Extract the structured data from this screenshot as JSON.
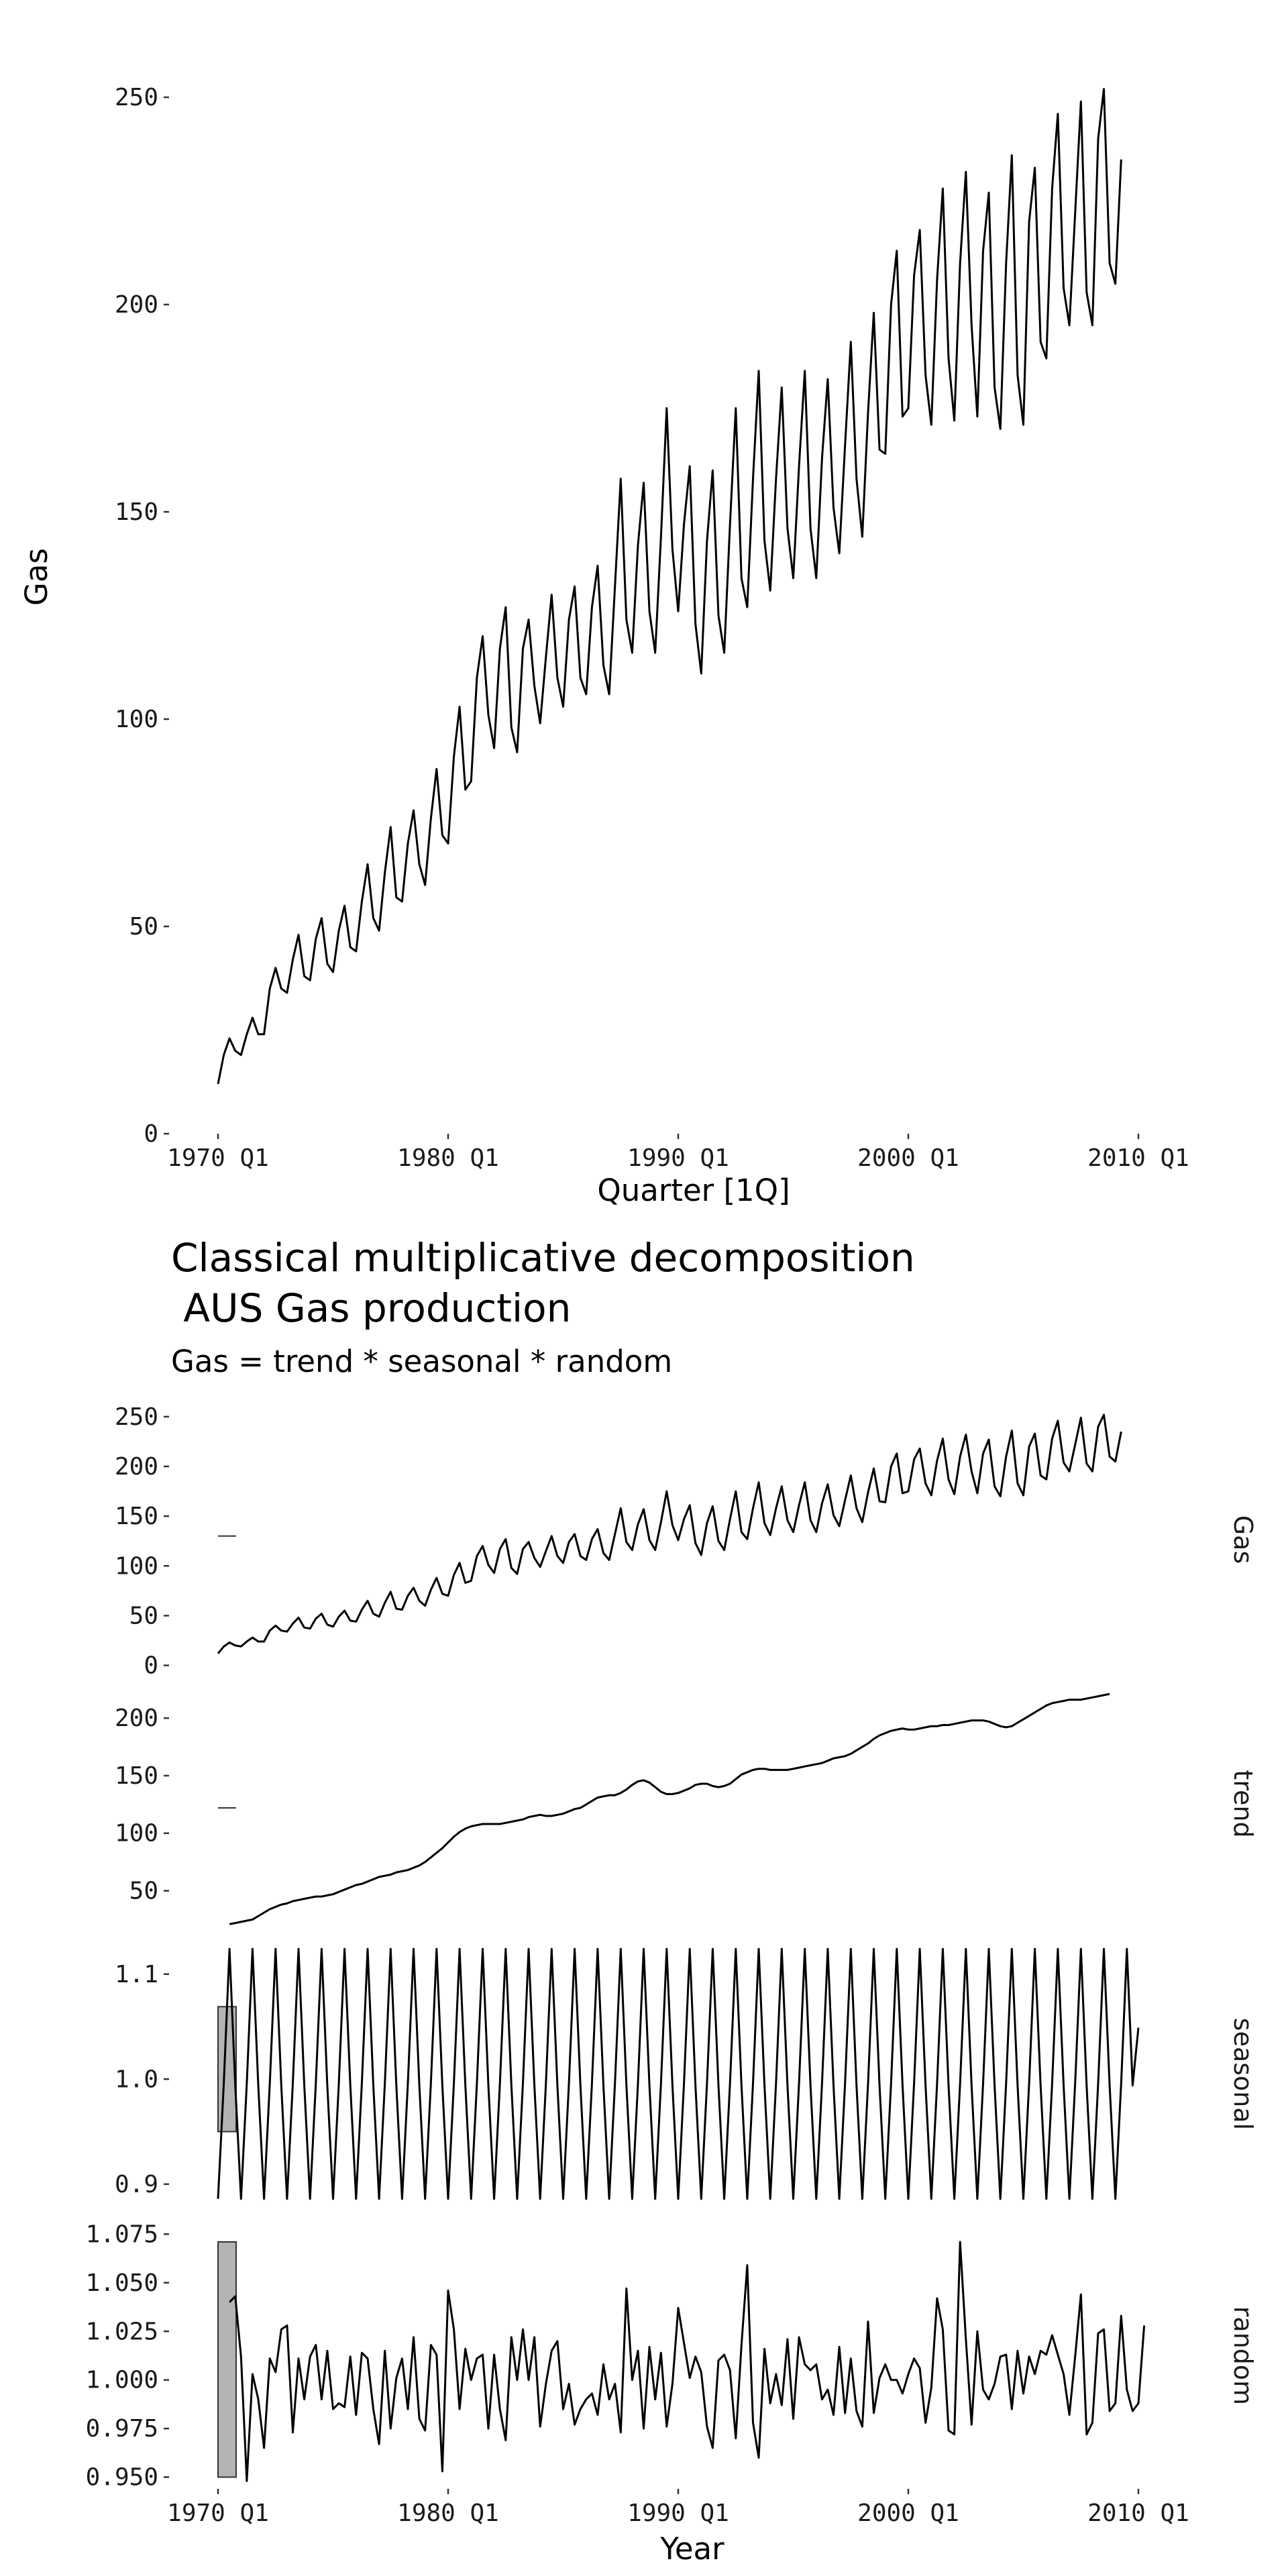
{
  "chart_data": [
    {
      "type": "line",
      "title": "",
      "xlabel": "Quarter [1Q]",
      "ylabel": "Gas",
      "ylim": [
        0,
        260
      ],
      "y_ticks": [
        0,
        50,
        100,
        150,
        200,
        250
      ],
      "x_ticks": [
        "1970 Q1",
        "1980 Q1",
        "1990 Q1",
        "2000 Q1",
        "2010 Q1"
      ],
      "x_tick_years": [
        1970,
        1980,
        1990,
        2000,
        2010
      ],
      "x_start": 1970.0,
      "x_step": 0.25,
      "grid": false,
      "series": [
        {
          "values": [
            12,
            19,
            23,
            20,
            19,
            24,
            28,
            24,
            24,
            35,
            40,
            35,
            34,
            42,
            48,
            38,
            37,
            47,
            52,
            41,
            39,
            49,
            55,
            45,
            44,
            56,
            65,
            52,
            49,
            63,
            74,
            57,
            56,
            70,
            78,
            65,
            60,
            76,
            88,
            72,
            70,
            91,
            103,
            83,
            85,
            110,
            120,
            101,
            93,
            117,
            127,
            98,
            92,
            117,
            124,
            108,
            99,
            115,
            130,
            110,
            103,
            124,
            132,
            110,
            106,
            127,
            137,
            113,
            106,
            132,
            158,
            124,
            116,
            142,
            157,
            126,
            116,
            144,
            175,
            141,
            126,
            147,
            161,
            123,
            111,
            143,
            160,
            125,
            116,
            147,
            175,
            134,
            127,
            158,
            184,
            143,
            131,
            158,
            180,
            146,
            134,
            161,
            184,
            146,
            134,
            163,
            182,
            151,
            140,
            166,
            191,
            158,
            144,
            174,
            198,
            165,
            164,
            200,
            213,
            173,
            175,
            207,
            218,
            183,
            171,
            206,
            228,
            187,
            172,
            210,
            232,
            195,
            173,
            213,
            227,
            180,
            170,
            210,
            236,
            183,
            171,
            220,
            233,
            191,
            187,
            228,
            246,
            204,
            195,
            222,
            249,
            203,
            195,
            240,
            252,
            210,
            205,
            235
          ]
        }
      ]
    },
    {
      "type": "line",
      "title": "Classical multiplicative decomposition\n AUS Gas production",
      "subtitle": "Gas = trend * seasonal * random",
      "xlabel": "Year",
      "x_ticks": [
        "1970 Q1",
        "1980 Q1",
        "1990 Q1",
        "2000 Q1",
        "2010 Q1"
      ],
      "x_tick_years": [
        1970,
        1980,
        1990,
        2000,
        2010
      ],
      "grid": false,
      "panels": [
        {
          "name": "Gas",
          "ylim": [
            -5,
            258
          ],
          "y_ticks": [
            0,
            50,
            100,
            150,
            200,
            250
          ],
          "scale_bar": [
            130,
            130
          ],
          "source": "observed"
        },
        {
          "name": "trend",
          "ylim": [
            20,
            231
          ],
          "y_ticks": [
            50,
            100,
            150,
            200
          ],
          "scale_bar": [
            122,
            122
          ],
          "x_start": 1970.5,
          "x_step": 0.25,
          "values": [
            21,
            22,
            23,
            24,
            25,
            28,
            31,
            34,
            36,
            38,
            39,
            41,
            42,
            43,
            44,
            45,
            45,
            46,
            47,
            49,
            51,
            53,
            55,
            56,
            58,
            60,
            62,
            63,
            64,
            66,
            67,
            68,
            70,
            72,
            75,
            79,
            83,
            87,
            92,
            97,
            101,
            104,
            106,
            107,
            108,
            108,
            108,
            108,
            109,
            110,
            111,
            112,
            114,
            115,
            116,
            115,
            115,
            116,
            117,
            119,
            121,
            122,
            125,
            128,
            131,
            132,
            133,
            133,
            135,
            138,
            142,
            145,
            146,
            144,
            140,
            136,
            134,
            134,
            135,
            137,
            139,
            142,
            143,
            143,
            141,
            140,
            141,
            143,
            147,
            151,
            153,
            155,
            156,
            156,
            155,
            155,
            155,
            155,
            156,
            157,
            158,
            159,
            160,
            161,
            163,
            165,
            166,
            167,
            169,
            172,
            175,
            178,
            182,
            185,
            187,
            189,
            190,
            191,
            190,
            190,
            191,
            192,
            193,
            193,
            194,
            194,
            195,
            196,
            197,
            198,
            198,
            198,
            197,
            195,
            193,
            192,
            193,
            196,
            199,
            202,
            205,
            208,
            211,
            213,
            214,
            215,
            216,
            216,
            216,
            217,
            218,
            219,
            220,
            221
          ]
        },
        {
          "name": "seasonal",
          "ylim": [
            0.875,
            1.135
          ],
          "y_ticks": [
            0.9,
            1.0,
            1.1
          ],
          "y_tick_labels": [
            "0.9",
            "1.0",
            "1.1"
          ],
          "scale_bar": [
            0.95,
            1.069
          ],
          "season_pattern": [
            0.886,
            0.996,
            1.124,
            0.994
          ],
          "x_start": 1970.0,
          "x_step": 0.25,
          "last_value": 1.049
        },
        {
          "name": "random",
          "ylim": [
            0.944,
            1.081
          ],
          "y_ticks": [
            0.95,
            0.975,
            1.0,
            1.025,
            1.05,
            1.075
          ],
          "y_tick_labels": [
            "0.950",
            "0.975",
            "1.000",
            "1.025",
            "1.050",
            "1.075"
          ],
          "scale_bar": [
            0.95,
            1.071
          ],
          "x_start": 1970.5,
          "x_step": 0.25,
          "values": [
            1.04,
            1.043,
            1.012,
            0.948,
            1.003,
            0.99,
            0.965,
            1.011,
            1.004,
            1.026,
            1.028,
            0.973,
            1.011,
            0.99,
            1.012,
            1.018,
            0.99,
            1.015,
            0.985,
            0.988,
            0.986,
            1.012,
            0.982,
            1.014,
            1.011,
            0.985,
            0.967,
            1.015,
            0.975,
            1.001,
            1.011,
            0.985,
            1.022,
            0.98,
            0.974,
            1.018,
            1.013,
            0.953,
            1.046,
            1.026,
            0.985,
            1.016,
            1.0,
            1.011,
            1.013,
            0.975,
            1.013,
            0.985,
            0.969,
            1.022,
            1.0,
            1.026,
            1.0,
            1.022,
            0.976,
            0.998,
            1.015,
            1.02,
            0.985,
            0.998,
            0.977,
            0.985,
            0.99,
            0.993,
            0.982,
            1.008,
            0.99,
            0.998,
            0.973,
            1.047,
            1.0,
            1.015,
            0.975,
            1.017,
            0.99,
            1.014,
            0.976,
            0.998,
            1.037,
            1.019,
            1.001,
            1.012,
            1.004,
            0.976,
            0.965,
            1.01,
            1.013,
            1.005,
            0.97,
            1.018,
            1.059,
            0.978,
            0.96,
            1.016,
            0.988,
            1.003,
            0.987,
            1.021,
            0.98,
            1.022,
            1.008,
            1.005,
            1.008,
            0.99,
            0.995,
            0.982,
            1.017,
            0.983,
            1.011,
            0.984,
            0.976,
            1.03,
            0.983,
            1.001,
            1.008,
            1.0,
            1.0,
            0.993,
            1.003,
            1.011,
            1.006,
            0.978,
            0.996,
            1.042,
            1.026,
            0.974,
            0.972,
            1.071,
            1.021,
            0.977,
            1.025,
            0.995,
            0.99,
            0.998,
            1.012,
            1.013,
            0.985,
            1.015,
            0.993,
            1.012,
            1.003,
            1.015,
            1.013,
            1.023,
            1.013,
            1.003,
            0.982,
            1.012,
            1.044,
            0.972,
            0.978,
            1.024,
            1.026,
            0.984,
            0.988,
            1.033,
            0.995,
            0.984,
            0.988,
            1.028
          ]
        }
      ]
    }
  ]
}
